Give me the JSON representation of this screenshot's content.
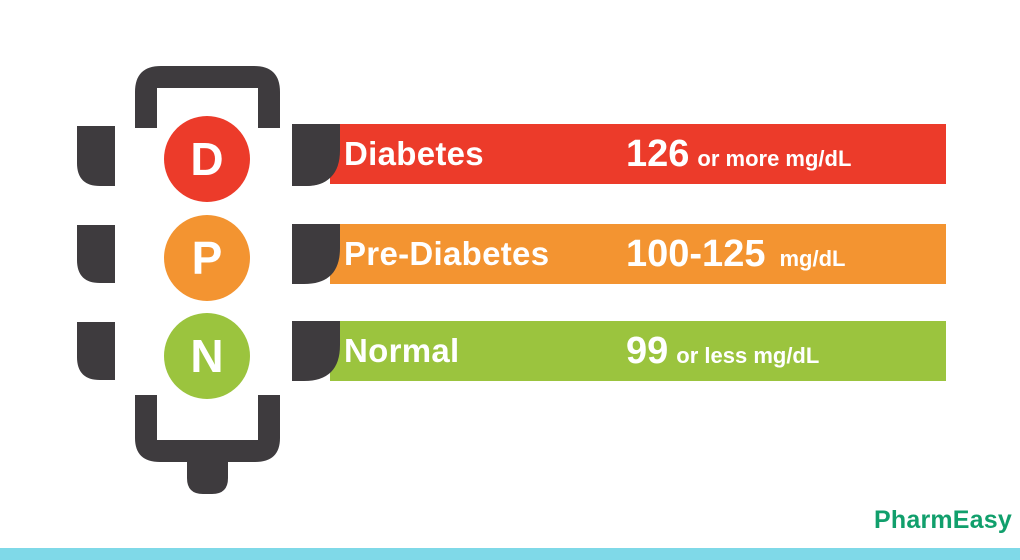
{
  "colors": {
    "housing": "#3e3b3e",
    "diabetes": "#ec3b2a",
    "prediabetes": "#f39431",
    "normal": "#9bc43e",
    "brand": "#119f6c",
    "bottom_bar": "#7fd9e8"
  },
  "levels": [
    {
      "letter": "D",
      "label": "Diabetes",
      "value": "126",
      "unit": "or more mg/dL"
    },
    {
      "letter": "P",
      "label": "Pre-Diabetes",
      "value": "100-125",
      "unit": "mg/dL"
    },
    {
      "letter": "N",
      "label": "Normal",
      "value": "99",
      "unit": "or less mg/dL"
    }
  ],
  "brand": "PharmEasy"
}
